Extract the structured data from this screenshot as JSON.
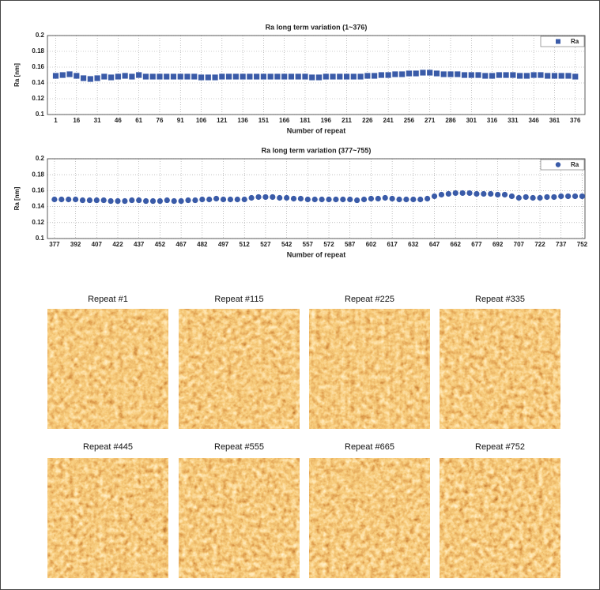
{
  "chart_data": [
    {
      "type": "scatter",
      "title": "Ra long term variation (1~376)",
      "x_label": "Number of repeat",
      "y_label": "Ra [nm]",
      "marker": "square",
      "legend": "top-right",
      "grid": true,
      "xlim": [
        -5,
        383
      ],
      "ylim": [
        0.1,
        0.2
      ],
      "xticks": [
        1,
        16,
        31,
        46,
        61,
        76,
        91,
        106,
        121,
        136,
        151,
        166,
        181,
        196,
        211,
        226,
        241,
        256,
        271,
        286,
        301,
        316,
        331,
        346,
        361,
        376
      ],
      "yticks": [
        0.1,
        0.12,
        0.14,
        0.16,
        0.18,
        0.2
      ],
      "x": [
        1,
        6,
        11,
        16,
        21,
        26,
        31,
        36,
        41,
        46,
        51,
        56,
        61,
        66,
        71,
        76,
        81,
        86,
        91,
        96,
        101,
        106,
        111,
        116,
        121,
        126,
        131,
        136,
        141,
        146,
        151,
        156,
        161,
        166,
        171,
        176,
        181,
        186,
        191,
        196,
        201,
        206,
        211,
        216,
        221,
        226,
        231,
        236,
        241,
        246,
        251,
        256,
        261,
        266,
        271,
        276,
        281,
        286,
        291,
        296,
        301,
        306,
        311,
        316,
        321,
        326,
        331,
        336,
        341,
        346,
        351,
        356,
        361,
        366,
        371,
        376
      ],
      "series": [
        {
          "name": "Ra",
          "color": "#3a5ba8",
          "values": [
            0.149,
            0.15,
            0.151,
            0.149,
            0.146,
            0.145,
            0.146,
            0.148,
            0.147,
            0.148,
            0.149,
            0.148,
            0.15,
            0.148,
            0.148,
            0.148,
            0.148,
            0.148,
            0.148,
            0.148,
            0.148,
            0.147,
            0.147,
            0.147,
            0.148,
            0.148,
            0.148,
            0.148,
            0.148,
            0.148,
            0.148,
            0.148,
            0.148,
            0.148,
            0.148,
            0.148,
            0.148,
            0.147,
            0.147,
            0.148,
            0.148,
            0.148,
            0.148,
            0.148,
            0.148,
            0.149,
            0.149,
            0.15,
            0.15,
            0.151,
            0.151,
            0.152,
            0.152,
            0.153,
            0.153,
            0.152,
            0.151,
            0.151,
            0.151,
            0.15,
            0.15,
            0.15,
            0.149,
            0.149,
            0.15,
            0.15,
            0.15,
            0.149,
            0.149,
            0.15,
            0.15,
            0.149,
            0.149,
            0.149,
            0.149,
            0.148
          ]
        }
      ]
    },
    {
      "type": "scatter",
      "title": "Ra long term variation (377~755)",
      "x_label": "Number of repeat",
      "y_label": "Ra [nm]",
      "marker": "circle",
      "legend": "top-right",
      "grid": true,
      "xlim": [
        372,
        754
      ],
      "ylim": [
        0.1,
        0.2
      ],
      "xticks": [
        377,
        392,
        407,
        422,
        437,
        452,
        467,
        482,
        497,
        512,
        527,
        542,
        557,
        572,
        587,
        602,
        617,
        632,
        647,
        662,
        677,
        692,
        707,
        722,
        737,
        752
      ],
      "yticks": [
        0.1,
        0.12,
        0.14,
        0.16,
        0.18,
        0.2
      ],
      "x": [
        377,
        382,
        387,
        392,
        397,
        402,
        407,
        412,
        417,
        422,
        427,
        432,
        437,
        442,
        447,
        452,
        457,
        462,
        467,
        472,
        477,
        482,
        487,
        492,
        497,
        502,
        507,
        512,
        517,
        522,
        527,
        532,
        537,
        542,
        547,
        552,
        557,
        562,
        567,
        572,
        577,
        582,
        587,
        592,
        597,
        602,
        607,
        612,
        617,
        622,
        627,
        632,
        637,
        642,
        647,
        652,
        657,
        662,
        667,
        672,
        677,
        682,
        687,
        692,
        697,
        702,
        707,
        712,
        717,
        722,
        727,
        732,
        737,
        742,
        747,
        752
      ],
      "series": [
        {
          "name": "Ra",
          "color": "#3a5ba8",
          "values": [
            0.149,
            0.149,
            0.149,
            0.149,
            0.148,
            0.148,
            0.148,
            0.148,
            0.147,
            0.147,
            0.147,
            0.148,
            0.148,
            0.147,
            0.147,
            0.147,
            0.148,
            0.147,
            0.147,
            0.148,
            0.148,
            0.149,
            0.149,
            0.15,
            0.149,
            0.149,
            0.149,
            0.149,
            0.151,
            0.152,
            0.152,
            0.152,
            0.151,
            0.151,
            0.15,
            0.15,
            0.149,
            0.149,
            0.149,
            0.149,
            0.149,
            0.149,
            0.149,
            0.148,
            0.149,
            0.15,
            0.15,
            0.151,
            0.15,
            0.149,
            0.149,
            0.149,
            0.149,
            0.15,
            0.153,
            0.155,
            0.156,
            0.157,
            0.157,
            0.157,
            0.156,
            0.156,
            0.156,
            0.155,
            0.155,
            0.153,
            0.151,
            0.152,
            0.151,
            0.151,
            0.152,
            0.152,
            0.153,
            0.153,
            0.153,
            0.153
          ]
        }
      ]
    }
  ],
  "images": [
    "Repeat #1",
    "Repeat #115",
    "Repeat #225",
    "Repeat #335",
    "Repeat #445",
    "Repeat #555",
    "Repeat #665",
    "Repeat #752"
  ]
}
